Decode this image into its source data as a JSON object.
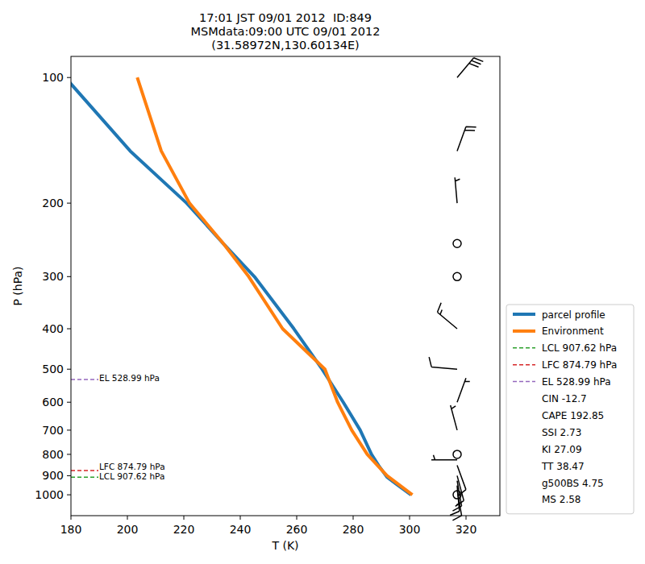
{
  "chart_data": {
    "type": "line",
    "title": "17:01 JST 09/01 2012  ID:849",
    "subtitle": [
      "MSMdata:09:00 UTC 09/01 2012",
      "(31.58972N,130.60134E)"
    ],
    "x_label": "T (K)",
    "y_label": "P (hPa)",
    "log": "y",
    "xlim": [
      180,
      332
    ],
    "ylim": [
      1122,
      89
    ],
    "xticks": [
      180,
      200,
      220,
      240,
      260,
      280,
      300,
      320
    ],
    "yticks": [
      100,
      200,
      300,
      400,
      500,
      600,
      700,
      800,
      900,
      1000
    ],
    "legend": "outside right",
    "series": [
      {
        "name": "parcel profile",
        "color": "#1f77b4",
        "line_style": "solid",
        "x": [
          300.5,
          296,
          292,
          289,
          286.5,
          282.5,
          276.5,
          269,
          259,
          245,
          234,
          221,
          201,
          178
        ],
        "values": [
          1000,
          950,
          907,
          850,
          800,
          700,
          600,
          500,
          400,
          300,
          250,
          200,
          150,
          100
        ]
      },
      {
        "name": "Environment",
        "color": "#ff7f0e",
        "line_style": "solid",
        "x": [
          301,
          292,
          285,
          279.5,
          274.5,
          270,
          255,
          243,
          234,
          222,
          212,
          203.5
        ],
        "values": [
          1000,
          900,
          800,
          700,
          600,
          500,
          400,
          300,
          250,
          200,
          150,
          100
        ]
      }
    ],
    "levels": [
      {
        "name": "LCL",
        "label": "LCL 907.62 hPa",
        "value": 907.62,
        "color": "#2ca02c",
        "line_style": "dashed"
      },
      {
        "name": "LFC",
        "label": "LFC 874.79 hPa",
        "value": 874.79,
        "color": "#d62728",
        "line_style": "dashed"
      },
      {
        "name": "EL",
        "label": "EL 528.99 hPa",
        "value": 528.99,
        "color": "#9467bd",
        "line_style": "dashed"
      }
    ],
    "annotations": [
      "CIN -12.7",
      "CAPE 192.85",
      "SSI 2.73",
      "KI 27.09",
      "TT 38.47",
      "g500BS 4.75",
      "MS 2.58"
    ],
    "wind": {
      "pressure": [
        1000,
        975,
        950,
        925,
        900,
        850,
        825,
        800,
        700,
        600,
        500,
        400,
        300,
        250,
        200,
        150,
        100
      ],
      "direction": [
        0,
        170,
        175,
        170,
        165,
        160,
        270,
        0,
        345,
        20,
        275,
        310,
        0,
        0,
        355,
        20,
        40
      ],
      "speed": [
        0,
        10,
        10,
        15,
        10,
        10,
        5,
        0,
        5,
        5,
        10,
        15,
        0,
        0,
        5,
        20,
        30
      ]
    }
  }
}
